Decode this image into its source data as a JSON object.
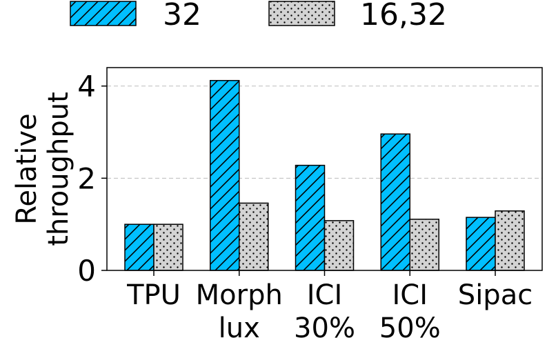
{
  "chart_data": {
    "type": "bar",
    "categories": [
      [
        "TPU"
      ],
      [
        "Morph",
        "lux"
      ],
      [
        "ICI",
        "30%"
      ],
      [
        "ICI",
        "50%"
      ],
      [
        "Sipac"
      ]
    ],
    "series": [
      {
        "name": "32",
        "values": [
          1.0,
          4.12,
          2.28,
          2.96,
          1.15
        ],
        "color": "#00bfff",
        "pattern": "diagonal-hatch"
      },
      {
        "name": "16,32",
        "values": [
          1.0,
          1.46,
          1.08,
          1.11,
          1.29
        ],
        "color": "#d3d3d3",
        "pattern": "dots"
      }
    ],
    "xlabel": "",
    "ylabel": [
      "Relative",
      "throughput"
    ],
    "ylim": [
      0,
      4.4
    ],
    "yticks": [
      0,
      2,
      4
    ],
    "grid": "y-dashed",
    "legend": "top"
  }
}
